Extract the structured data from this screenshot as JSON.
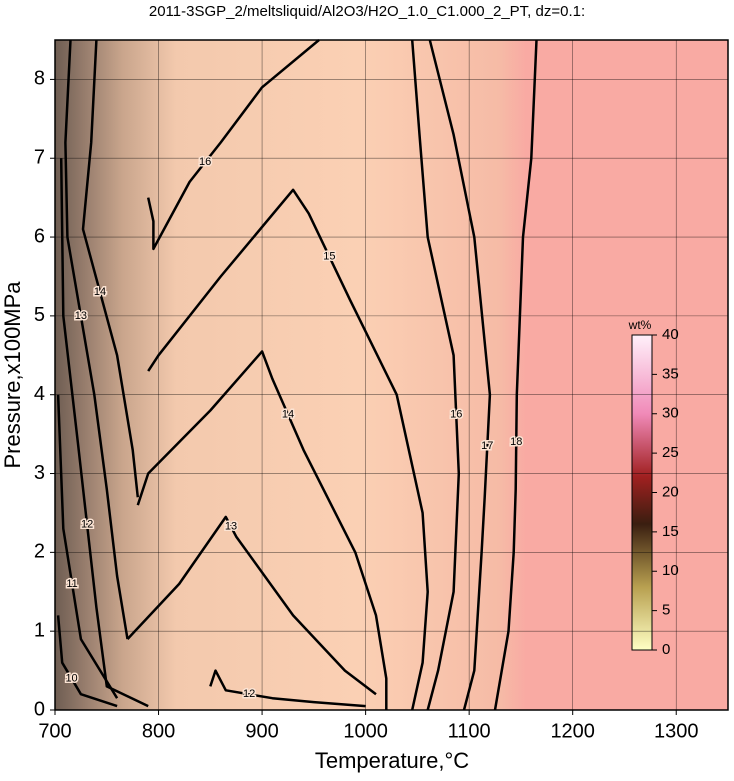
{
  "chart_data": {
    "type": "contour",
    "title": "2011-3SGP_2/meltsliquid/Al2O3/H2O_1.0_C1.000_2_PT, dz=0.1:",
    "xlabel": "Temperature,°C",
    "ylabel": "Pressure,x100MPa",
    "xlim": [
      700,
      1350
    ],
    "ylim": [
      0,
      8.5
    ],
    "xticks": [
      700,
      800,
      900,
      1000,
      1100,
      1200,
      1300
    ],
    "yticks": [
      0,
      1,
      2,
      3,
      4,
      5,
      6,
      7,
      8
    ],
    "grid": true,
    "line_color": "#000000",
    "contours": [
      {
        "level": 18,
        "x": [
          1165,
          1160,
          1152,
          1146,
          1145,
          1143,
          1138,
          1125
        ],
        "y": [
          8.5,
          7.0,
          6.0,
          4.0,
          2.8,
          2.0,
          1.0,
          0
        ]
      },
      {
        "level": 17,
        "x": [
          1062,
          1085,
          1105,
          1120,
          1115,
          1112,
          1105,
          1095
        ],
        "y": [
          8.5,
          7.3,
          6.0,
          4.0,
          2.7,
          2.0,
          0.5,
          0
        ]
      },
      {
        "level": 16,
        "x": [
          1045,
          1052,
          1060,
          1085,
          1090,
          1085,
          1070,
          1060
        ],
        "y": [
          8.5,
          7.3,
          6.0,
          4.5,
          3.0,
          1.5,
          0.5,
          0
        ]
      },
      {
        "level": 16,
        "x": [
          955,
          900,
          860,
          830,
          795,
          795,
          790
        ],
        "y": [
          8.5,
          7.9,
          7.2,
          6.7,
          5.85,
          6.2,
          6.5
        ]
      },
      {
        "level": 15,
        "x": [
          790,
          800,
          860,
          930,
          945,
          985,
          1030,
          1055,
          1060,
          1055,
          1045
        ],
        "y": [
          4.3,
          4.5,
          5.5,
          6.6,
          6.3,
          5.2,
          4.0,
          2.5,
          1.5,
          0.6,
          0
        ]
      },
      {
        "level": 14,
        "x": [
          780,
          790,
          850,
          900,
          910,
          940,
          990,
          1010,
          1020,
          1020
        ],
        "y": [
          2.6,
          3.0,
          3.8,
          4.55,
          4.2,
          3.3,
          2.0,
          1.2,
          0.4,
          0
        ]
      },
      {
        "level": 14,
        "x": [
          740,
          735,
          727,
          760,
          775,
          780
        ],
        "y": [
          8.5,
          7.2,
          6.1,
          4.5,
          3.3,
          2.7
        ]
      },
      {
        "level": 13,
        "x": [
          770,
          820,
          865,
          875,
          930,
          980,
          1010
        ],
        "y": [
          0.9,
          1.6,
          2.45,
          2.2,
          1.2,
          0.5,
          0.2
        ]
      },
      {
        "level": 13,
        "x": [
          715,
          710,
          712,
          738,
          750,
          760,
          770
        ],
        "y": [
          8.5,
          7.2,
          6.0,
          4.0,
          2.8,
          1.7,
          0.9
        ]
      },
      {
        "level": 12,
        "x": [
          850,
          855,
          865,
          910,
          950,
          1000
        ],
        "y": [
          0.3,
          0.5,
          0.25,
          0.15,
          0.1,
          0.05
        ]
      },
      {
        "level": 12,
        "x": [
          706,
          708,
          722,
          740,
          750,
          790
        ],
        "y": [
          7.0,
          5.0,
          3.4,
          1.3,
          0.3,
          0.05
        ]
      },
      {
        "level": 11,
        "x": [
          703,
          708,
          725,
          760
        ],
        "y": [
          4.0,
          2.3,
          0.9,
          0.15
        ]
      },
      {
        "level": 10,
        "x": [
          703,
          707,
          725,
          760
        ],
        "y": [
          1.2,
          0.6,
          0.2,
          0.05
        ]
      }
    ],
    "colorbar": {
      "label": "wt%",
      "lim": [
        0,
        40
      ],
      "ticks": [
        0,
        5,
        10,
        15,
        20,
        25,
        30,
        35,
        40
      ]
    }
  }
}
